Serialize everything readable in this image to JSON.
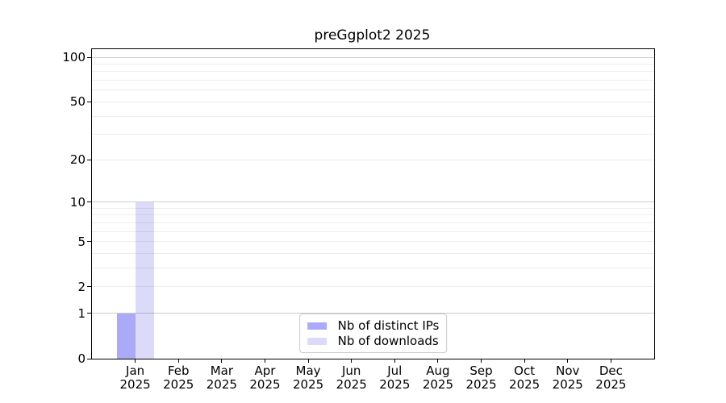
{
  "title": "preGgplot2 2025",
  "chart_data": {
    "type": "bar",
    "title": "preGgplot2 2025",
    "xlabel": "",
    "ylabel": "",
    "categories": [
      "Jan 2025",
      "Feb 2025",
      "Mar 2025",
      "Apr 2025",
      "May 2025",
      "Jun 2025",
      "Jul 2025",
      "Aug 2025",
      "Sep 2025",
      "Oct 2025",
      "Nov 2025",
      "Dec 2025"
    ],
    "series": [
      {
        "name": "Nb of distinct IPs",
        "color": "#aaaaf8",
        "values": [
          1,
          0,
          0,
          0,
          0,
          0,
          0,
          0,
          0,
          0,
          0,
          0
        ]
      },
      {
        "name": "Nb of downloads",
        "color": "#dbdbf9",
        "values": [
          10,
          0,
          0,
          0,
          0,
          0,
          0,
          0,
          0,
          0,
          0,
          0
        ]
      }
    ],
    "y_scale": "log1p",
    "ylim": [
      0,
      100
    ],
    "y_ticks": [
      0,
      1,
      2,
      5,
      10,
      20,
      50,
      100
    ],
    "y_tick_labels": [
      "0",
      "1",
      "2",
      "5",
      "10",
      "20",
      "50",
      "100"
    ],
    "y_minor_gridlines": [
      2,
      3,
      4,
      5,
      6,
      7,
      8,
      9,
      20,
      30,
      40,
      50,
      60,
      70,
      80,
      90
    ],
    "y_major_gridlines": [
      1,
      10,
      100
    ],
    "grid": true,
    "legend_position": "lower center",
    "colors": {
      "bar_distinct_ips": "#aaaaf8",
      "bar_downloads": "#dbdbf9",
      "grid_minor": "rgba(0,0,0,0.07)",
      "grid_major": "rgba(0,0,0,0.20)",
      "spine": "#000000",
      "text": "#000000",
      "legend_border": "#cccccc",
      "background": "#ffffff"
    }
  }
}
